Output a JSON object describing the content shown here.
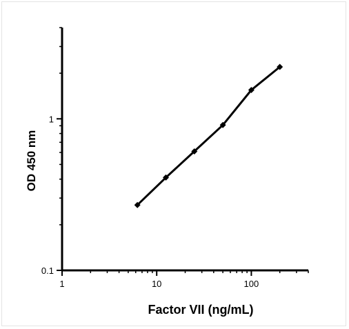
{
  "chart_data": {
    "type": "scatter",
    "xlabel": "Factor VII (ng/mL)",
    "ylabel": "OD 450 nm",
    "x_scale": "log",
    "y_scale": "log",
    "xlim": [
      1,
      400
    ],
    "ylim": [
      0.1,
      4
    ],
    "x_tick_labels": [
      {
        "value": 1,
        "label": "1"
      },
      {
        "value": 10,
        "label": "10"
      },
      {
        "value": 100,
        "label": "100"
      }
    ],
    "y_tick_labels": [
      {
        "value": 1,
        "label": "1"
      },
      {
        "value": 0.1,
        "label": "0.1"
      }
    ],
    "grid": false,
    "legend": "none",
    "series": [
      {
        "x": [
          6.25,
          12.5,
          25,
          50,
          100,
          200
        ],
        "y": [
          0.27,
          0.41,
          0.61,
          0.91,
          1.55,
          2.2
        ],
        "fit_line": true,
        "marker": "diamond"
      }
    ],
    "colors": {
      "line": "#000000",
      "marker": "#000000",
      "axis": "#000000"
    }
  }
}
